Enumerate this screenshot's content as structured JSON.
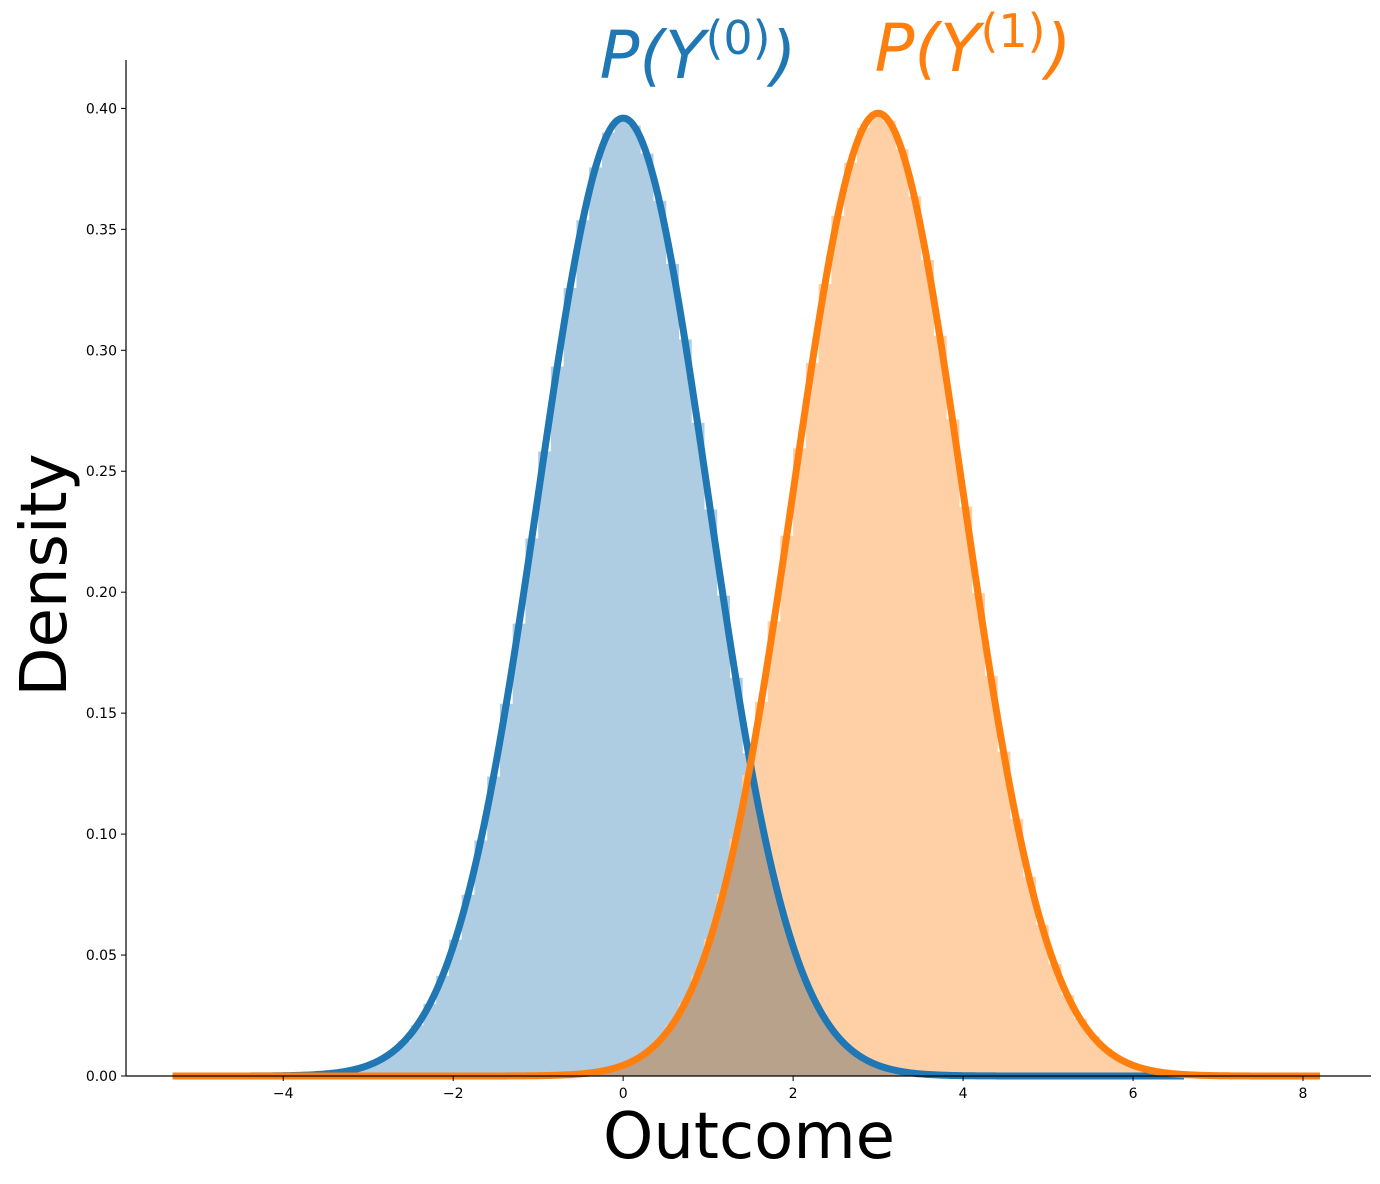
{
  "chart_data": {
    "type": "area",
    "xlabel": "Outcome",
    "ylabel": "Density",
    "xlim": [
      -5.85,
      8.8
    ],
    "ylim": [
      0,
      0.42
    ],
    "xticks": [
      -4,
      -2,
      0,
      2,
      4,
      6,
      8
    ],
    "xtick_labels": [
      "−4",
      "−2",
      "0",
      "2",
      "4",
      "6",
      "8"
    ],
    "yticks": [
      0.0,
      0.05,
      0.1,
      0.15,
      0.2,
      0.25,
      0.3,
      0.35,
      0.4
    ],
    "ytick_labels": [
      "0.00",
      "0.05",
      "0.10",
      "0.15",
      "0.20",
      "0.25",
      "0.30",
      "0.35",
      "0.40"
    ],
    "grid": false,
    "histogram": {
      "bin_width": 0.15
    },
    "series": [
      {
        "name": "P(Y(0))",
        "label_main": "P(Y",
        "label_sup": "(0)",
        "label_close": ")",
        "color": "#1f77b4",
        "fill_color": "#aecde3",
        "kde_range": [
          -5.3,
          6.6
        ],
        "mean": 0.0,
        "std": 1.0,
        "peak": 0.396
      },
      {
        "name": "P(Y(1))",
        "label_main": "P(Y",
        "label_sup": "(1)",
        "label_close": ")",
        "color": "#ff7f0e",
        "fill_color": "#ffcfa5",
        "kde_range": [
          -5.3,
          8.2
        ],
        "mean": 3.0,
        "std": 1.0,
        "peak": 0.398
      }
    ],
    "overlap_color": "#b9a28c"
  }
}
